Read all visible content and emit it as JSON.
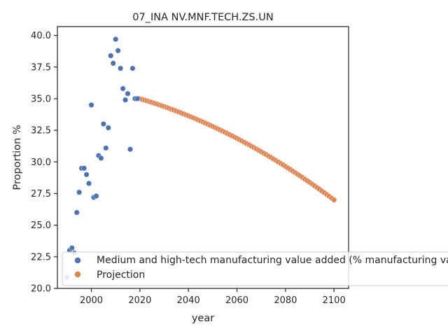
{
  "chart_data": {
    "type": "scatter",
    "title": "07_INA NV.MNF.TECH.ZS.UN",
    "xlabel": "year",
    "ylabel": "Proportion %",
    "xlim": [
      1986,
      2106
    ],
    "ylim": [
      20.0,
      40.7
    ],
    "x_ticks": [
      2000,
      2020,
      2040,
      2060,
      2080,
      2100
    ],
    "y_ticks": [
      20.0,
      22.5,
      25.0,
      27.5,
      30.0,
      32.5,
      35.0,
      37.5,
      40.0
    ],
    "grid": false,
    "legend_position": "lower-left",
    "series": [
      {
        "name": "Medium and high-tech manufacturing value added (% manufacturing value added)",
        "color": "#4c72b0",
        "x": [
          1990,
          1991,
          1992,
          1993,
          1994,
          1995,
          1996,
          1997,
          1998,
          1999,
          2000,
          2001,
          2002,
          2003,
          2004,
          2005,
          2006,
          2007,
          2008,
          2009,
          2010,
          2011,
          2012,
          2013,
          2014,
          2015,
          2016,
          2017,
          2018,
          2019
        ],
        "y": [
          20.9,
          23.0,
          23.2,
          22.8,
          26.0,
          27.6,
          29.5,
          29.5,
          29.0,
          28.3,
          34.5,
          27.2,
          27.3,
          30.5,
          30.3,
          33.0,
          31.1,
          32.7,
          38.4,
          37.8,
          39.7,
          38.8,
          37.4,
          35.8,
          34.9,
          35.4,
          31.0,
          37.4,
          35.0,
          35.0
        ]
      },
      {
        "name": "Projection",
        "color": "#dd8452",
        "x_start": 2020,
        "x_end": 2100,
        "y_start": 35.0,
        "y_end": 27.0,
        "curve": "quadratic"
      }
    ]
  }
}
